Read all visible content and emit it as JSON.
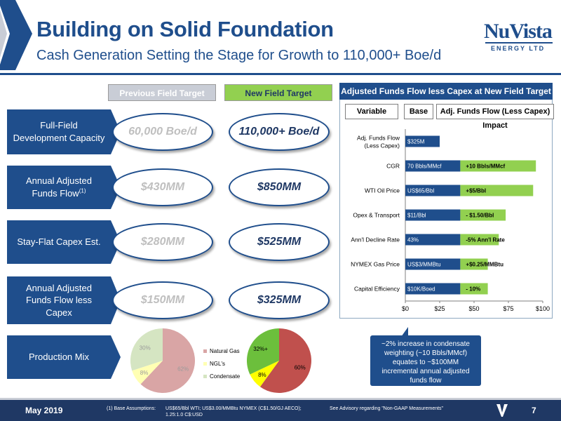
{
  "header": {
    "title": "Building on Solid Foundation",
    "subtitle": "Cash Generation Setting the Stage for Growth to 110,000+ Boe/d",
    "logo_text": "NuVista",
    "logo_sub": "ENERGY LTD"
  },
  "columns": {
    "previous": "Previous Field Target",
    "new": "New Field Target"
  },
  "rows": [
    {
      "label": "Full-Field Development Capacity",
      "sup": "",
      "previous": "60,000 Boe/d",
      "new": "110,000+ Boe/d"
    },
    {
      "label": "Annual Adjusted Funds Flow",
      "sup": "(1)",
      "previous": "$430MM",
      "new": "$850MM"
    },
    {
      "label": "Stay-Flat Capex Est.",
      "sup": "",
      "previous": "$280MM",
      "new": "$525MM"
    },
    {
      "label": "Annual Adjusted Funds Flow less Capex",
      "sup": "",
      "previous": "$150MM",
      "new": "$325MM"
    }
  ],
  "production_mix": {
    "label": "Production Mix",
    "legend": [
      "Natural Gas",
      "NGL's",
      "Condensate"
    ],
    "colors": [
      "#d9a5a5",
      "#ffffb3",
      "#d5e5c2"
    ],
    "new_colors": [
      "#c0504d",
      "#ffff00",
      "#6cbf3c"
    ],
    "previous": {
      "values": [
        62,
        8,
        30
      ],
      "labels": [
        "62%",
        "8%",
        "30%"
      ]
    },
    "new": {
      "values": [
        60,
        8,
        32
      ],
      "labels": [
        "60%",
        "8%",
        "32%+"
      ]
    }
  },
  "callout": {
    "text": "~2% increase in condensate weighting (~10 Bbls/MMcf) equates to ~$100MM incremental annual adjusted funds flow"
  },
  "sensitivity": {
    "title": "Adjusted Funds Flow less Capex at New Field Target",
    "col_variable": "Variable",
    "col_base": "Base",
    "col_impact": "Adj. Funds Flow (Less Capex) Impact"
  },
  "chart_data": {
    "type": "bar",
    "orientation": "horizontal",
    "stacked": true,
    "categories": [
      "Adj. Funds Flow (Less Capex)",
      "CGR",
      "WTI Oil Price",
      "Opex & Transport",
      "Ann'l Decline Rate",
      "NYMEX Gas Price",
      "Capital Efficiency"
    ],
    "series": [
      {
        "values": [
          25,
          40,
          40,
          40,
          40,
          40,
          40
        ],
        "labels": [
          "$325M",
          "70 Bbls/MMcf",
          "US$65/Bbl",
          "$11/Bbl",
          "43%",
          "US$3/MMBtu",
          "$10K/Boed"
        ]
      },
      {
        "values": [
          0,
          55,
          53,
          33,
          28,
          20,
          20
        ],
        "labels": [
          "",
          "+10 Bbls/MMcf",
          "+$5/Bbl",
          "- $1.50/Bbl",
          "-5% Ann'l Rate",
          "+$0.25/MMBtu",
          "- 10%"
        ]
      }
    ],
    "colors": [
      "#1f4e8c",
      "#92d050"
    ],
    "xlim": [
      0,
      100
    ],
    "xticks": [
      "$0",
      "$25",
      "$50",
      "$75",
      "$100"
    ],
    "grid": false
  },
  "footer": {
    "date": "May 2019",
    "footnote_label": "(1) Base Assumptions:",
    "footnote_text": "US$65/Bbl WTI; US$3.00/MMBtu NYMEX (C$1.50/GJ AECO); 1.25:1.0 C$:USD",
    "advisory": "See Advisory regarding \"Non-GAAP Measurements\"",
    "page": "7"
  }
}
